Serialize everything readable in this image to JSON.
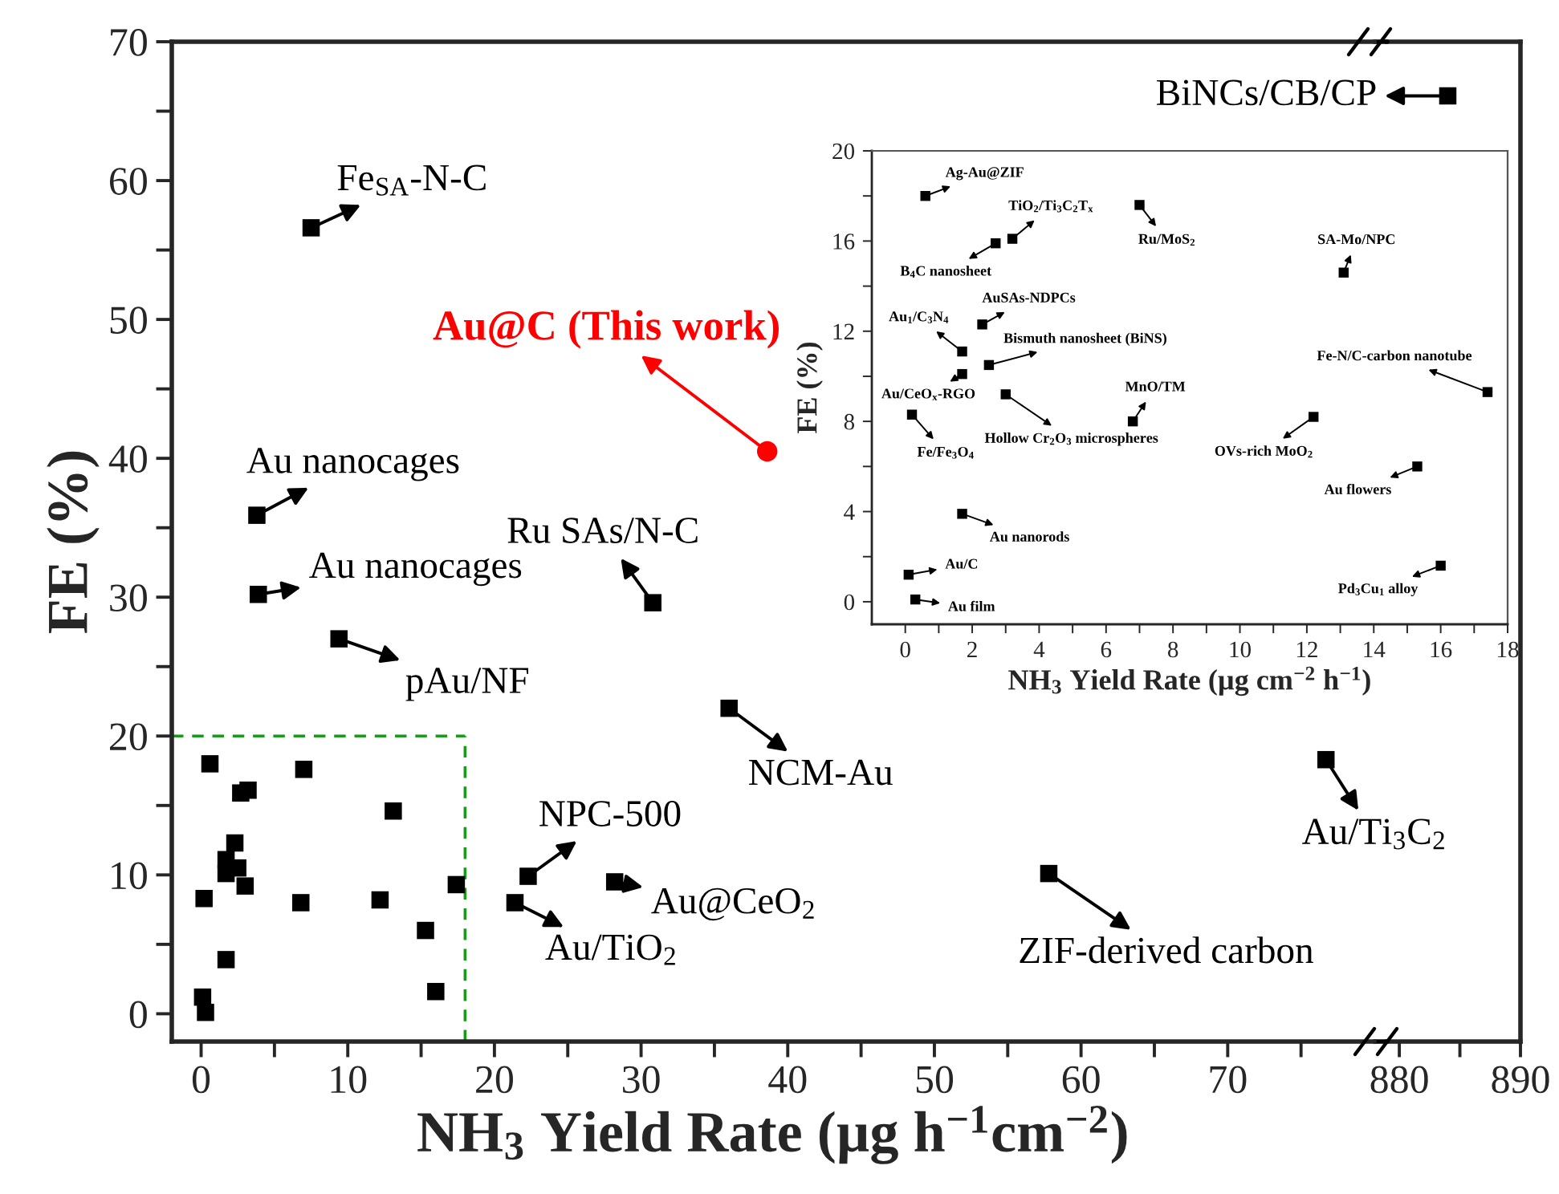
{
  "chart_data": [
    {
      "type": "scatter",
      "xlabel": "NH$_{3}$ Yield Rate (µg h$^{−1}$cm$^{−2}$)",
      "ylabel": "FE (%)",
      "xlim": [
        -2,
        80
      ],
      "xticks": [
        0,
        {
          "value": 5,
          "label": null
        },
        10,
        {
          "value": 15,
          "label": null
        },
        20,
        {
          "value": 25,
          "label": null
        },
        30,
        {
          "value": 35,
          "label": null
        },
        40,
        {
          "value": 45,
          "label": null
        },
        50,
        {
          "value": 55,
          "label": null
        },
        60,
        {
          "value": 65,
          "label": null
        },
        70,
        {
          "value": 75,
          "label": null
        }
      ],
      "ylim": [
        -2,
        70
      ],
      "yticks": [
        0,
        {
          "value": 5,
          "label": null
        },
        10,
        {
          "value": 15,
          "label": null
        },
        20,
        {
          "value": 25,
          "label": null
        },
        30,
        {
          "value": 35,
          "label": null
        },
        40,
        {
          "value": 45,
          "label": null
        },
        50,
        {
          "value": 55,
          "label": null
        },
        60,
        {
          "value": 65,
          "label": null
        },
        70
      ],
      "tick_labels": "xy",
      "series": [
        {
          "color": "#000000",
          "marker": "square",
          "x": [
            7.5,
            3.8,
            3.9,
            30.8,
            9.4,
            36.0,
            22.3,
            21.4,
            28.2,
            57.8,
            76.7
          ],
          "values": [
            56.6,
            35.9,
            30.2,
            29.6,
            27.0,
            22.0,
            9.9,
            8.0,
            9.5,
            10.1,
            18.3
          ]
        },
        {
          "color": "#000000",
          "marker": "square",
          "x": [
            0.6,
            3.2,
            2.7,
            7.0,
            13.1,
            2.3,
            1.7,
            2.5,
            1.7,
            17.4,
            3.0,
            6.8,
            0.2,
            12.2,
            15.3,
            1.7,
            16.0,
            0.1,
            0.3
          ],
          "values": [
            18.0,
            16.1,
            15.9,
            17.6,
            14.6,
            12.3,
            11.1,
            10.5,
            10.1,
            9.3,
            9.2,
            8.0,
            8.3,
            8.2,
            6.0,
            3.9,
            1.6,
            1.2,
            0.1
          ]
        },
        {
          "color": "#ff0000",
          "marker": "circle",
          "x": [
            38.6
          ],
          "values": [
            40.5
          ]
        }
      ],
      "annotations": [
        {
          "text": "Fe$_{SA}$-N-C",
          "x": 7.5,
          "y": 56.6
        },
        {
          "text": "Au@C (This work)",
          "x": 38.6,
          "y": 40.5
        },
        {
          "text": "Au nanocages",
          "x": 3.8,
          "y": 35.9
        },
        {
          "text": "Au nanocages",
          "x": 3.9,
          "y": 30.2
        },
        {
          "text": "Ru SAs/N-C",
          "x": 30.8,
          "y": 29.6
        },
        {
          "text": "pAu/NF",
          "x": 9.4,
          "y": 27.0
        },
        {
          "text": "NCM-Au",
          "x": 36.0,
          "y": 22.0
        },
        {
          "text": "NPC-500",
          "x": 22.3,
          "y": 9.9
        },
        {
          "text": "Au/TiO$_{2}$",
          "x": 21.4,
          "y": 8.0
        },
        {
          "text": "Au@CeO$_{2}$",
          "x": 28.2,
          "y": 9.5
        },
        {
          "text": "ZIF-derived carbon",
          "x": 57.8,
          "y": 10.1
        },
        {
          "text": "Au/Ti$_{3}$C$_{2}$",
          "x": 76.7,
          "y": 18.3
        }
      ]
    },
    {
      "type": "scatter",
      "xlim": [
        879,
        890
      ],
      "xticks": [
        880,
        {
          "value": 885,
          "label": null
        },
        890
      ],
      "ylim": [
        -2,
        70
      ],
      "tick_labels": "x",
      "series": [
        {
          "color": "#000000",
          "marker": "square",
          "x": [
            884.0
          ],
          "values": [
            66.1
          ]
        }
      ],
      "annotations": [
        {
          "text": "BiNCs/CB/CP",
          "x": 884.0,
          "y": 66.1
        }
      ]
    },
    {
      "type": "scatter",
      "xlabel": "NH$_{3}$ Yield Rate (µg cm$^{−2}$ h$^{−1}$)",
      "ylabel": "FE (%)",
      "xlim": [
        -1,
        18
      ],
      "xticks": [
        0,
        {
          "value": 1,
          "label": null
        },
        2,
        {
          "value": 3,
          "label": null
        },
        4,
        {
          "value": 5,
          "label": null
        },
        6,
        {
          "value": 7,
          "label": null
        },
        8,
        {
          "value": 9,
          "label": null
        },
        10,
        {
          "value": 11,
          "label": null
        },
        12,
        {
          "value": 13,
          "label": null
        },
        14,
        {
          "value": 15,
          "label": null
        },
        16,
        {
          "value": 17,
          "label": null
        },
        18
      ],
      "ylim": [
        -1,
        20
      ],
      "yticks": [
        0,
        {
          "value": 2,
          "label": null
        },
        4,
        {
          "value": 6,
          "label": null
        },
        8,
        {
          "value": 10,
          "label": null
        },
        12,
        {
          "value": 14,
          "label": null
        },
        16,
        {
          "value": 18,
          "label": null
        },
        20
      ],
      "tick_labels": "xy",
      "series": [
        {
          "color": "#000000",
          "marker": "square",
          "x": [
            0.6,
            3.2,
            2.7,
            7.0,
            13.1,
            2.3,
            1.7,
            2.5,
            1.7,
            17.4,
            3.0,
            6.8,
            0.2,
            12.2,
            15.3,
            1.7,
            16.0,
            0.1,
            0.3
          ],
          "values": [
            18.0,
            16.1,
            15.9,
            17.6,
            14.6,
            12.3,
            11.1,
            10.5,
            10.1,
            9.3,
            9.2,
            8.0,
            8.3,
            8.2,
            6.0,
            3.9,
            1.6,
            1.2,
            0.1
          ]
        }
      ],
      "annotations": [
        {
          "text": "Ag-Au@ZIF",
          "x": 0.6,
          "y": 18.0
        },
        {
          "text": "TiO$_{2}$/Ti$_{3}$C$_{2}$T$_{x}$",
          "x": 3.2,
          "y": 16.1
        },
        {
          "text": "B$_{4}$C nanosheet",
          "x": 2.7,
          "y": 15.9
        },
        {
          "text": "Ru/MoS$_{2}$",
          "x": 7.0,
          "y": 17.6
        },
        {
          "text": "SA-Mo/NPC",
          "x": 13.1,
          "y": 14.6
        },
        {
          "text": "AuSAs-NDPCs",
          "x": 2.3,
          "y": 12.3
        },
        {
          "text": "Au$_{1}$/C$_{3}$N$_{4}$",
          "x": 1.7,
          "y": 11.1
        },
        {
          "text": "Bismuth nanosheet (BiNS)",
          "x": 2.5,
          "y": 10.5
        },
        {
          "text": "Au/CeO$_{x}$-RGO",
          "x": 1.7,
          "y": 10.1
        },
        {
          "text": "Fe-N/C-carbon nanotube",
          "x": 17.4,
          "y": 9.3
        },
        {
          "text": "Hollow Cr$_{2}$O$_{3}$ microspheres",
          "x": 3.0,
          "y": 9.2
        },
        {
          "text": "MnO/TM",
          "x": 6.8,
          "y": 8.0
        },
        {
          "text": "Fe/Fe$_{3}$O$_{4}$",
          "x": 0.2,
          "y": 8.3
        },
        {
          "text": "OVs-rich MoO$_{2}$",
          "x": 12.2,
          "y": 8.2
        },
        {
          "text": "Au flowers",
          "x": 15.3,
          "y": 6.0
        },
        {
          "text": "Au nanorods",
          "x": 1.7,
          "y": 3.9
        },
        {
          "text": "Pd$_{3}$Cu$_{1}$ alloy",
          "x": 16.0,
          "y": 1.6
        },
        {
          "text": "Au/C",
          "x": 0.1,
          "y": 1.2
        },
        {
          "text": "Au film",
          "x": 0.3,
          "y": 0.1
        }
      ]
    }
  ]
}
